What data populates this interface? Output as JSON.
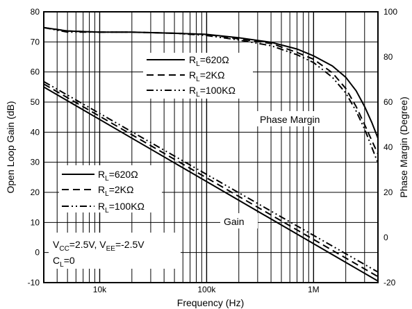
{
  "chart_data": {
    "type": "line",
    "xlabel": "Frequency (Hz)",
    "ylabel_left": "Open Loop Gain (dB)",
    "ylabel_right": "Phase Margin (Degree)",
    "x_scale": "log",
    "xlim": [
      3000,
      4000000
    ],
    "ylim_left": [
      -10,
      80
    ],
    "ylim_right": [
      -20,
      100
    ],
    "grid": true,
    "x_tick_labels": [
      {
        "value": 10000,
        "label": "10k"
      },
      {
        "value": 100000,
        "label": "100k"
      },
      {
        "value": 1000000,
        "label": "1M"
      }
    ],
    "y_left_ticks": [
      -10,
      0,
      10,
      20,
      30,
      40,
      50,
      60,
      70,
      80
    ],
    "y_right_ticks": [
      -20,
      0,
      20,
      40,
      60,
      80,
      100
    ],
    "annotations": {
      "phase_margin": "Phase Margin",
      "gain": "Gain",
      "conditions_line1": {
        "v": "V",
        "cc": "CC",
        "mid": "=2.5V, V",
        "ee": "EE",
        "end": "=-2.5V"
      },
      "conditions_line2": {
        "c": "C",
        "l": "L",
        "end": "=0"
      }
    },
    "series": [
      {
        "group": "phase",
        "name": "R",
        "sub": "L",
        "value": "=620Ω",
        "dash": "solid",
        "x": [
          3000,
          5000,
          10000,
          20000,
          50000,
          100000,
          200000,
          400000,
          700000,
          1000000,
          1500000,
          2000000,
          2500000,
          3000000,
          3500000,
          4000000
        ],
        "y": [
          93,
          91.5,
          91,
          91,
          90.5,
          90,
          88.5,
          86.5,
          83.5,
          80.5,
          76,
          71,
          65,
          58,
          51,
          44
        ]
      },
      {
        "group": "phase",
        "name": "R",
        "sub": "L",
        "value": "=2KΩ",
        "dash": "dashed",
        "x": [
          3000,
          5000,
          10000,
          20000,
          50000,
          100000,
          200000,
          400000,
          700000,
          1000000,
          1500000,
          2000000,
          2500000,
          3000000,
          3500000,
          4000000
        ],
        "y": [
          93,
          91.5,
          91,
          91,
          90.5,
          90,
          88,
          86,
          82,
          79,
          73,
          66,
          58,
          50,
          43,
          37
        ]
      },
      {
        "group": "phase",
        "name": "R",
        "sub": "L",
        "value": "=100KΩ",
        "dash": "dashdotdot",
        "x": [
          3000,
          5000,
          10000,
          20000,
          50000,
          100000,
          200000,
          400000,
          700000,
          1000000,
          1500000,
          2000000,
          2500000,
          3000000,
          3500000,
          4000000
        ],
        "y": [
          93,
          91,
          91,
          91,
          90.5,
          89.5,
          87.5,
          85,
          81,
          77.5,
          71,
          64,
          56,
          48,
          40,
          33
        ]
      },
      {
        "group": "gain",
        "name": "R",
        "sub": "L",
        "value": "=620Ω",
        "dash": "solid",
        "x": [
          3000,
          4000000
        ],
        "y": [
          55,
          -9.5
        ]
      },
      {
        "group": "gain",
        "name": "R",
        "sub": "L",
        "value": "=2KΩ",
        "dash": "dashed",
        "x": [
          3000,
          4000000
        ],
        "y": [
          56,
          -8
        ]
      },
      {
        "group": "gain",
        "name": "R",
        "sub": "L",
        "value": "=100KΩ",
        "dash": "dashdotdot",
        "x": [
          3000,
          4000000
        ],
        "y": [
          56.8,
          -6.5
        ]
      }
    ]
  }
}
